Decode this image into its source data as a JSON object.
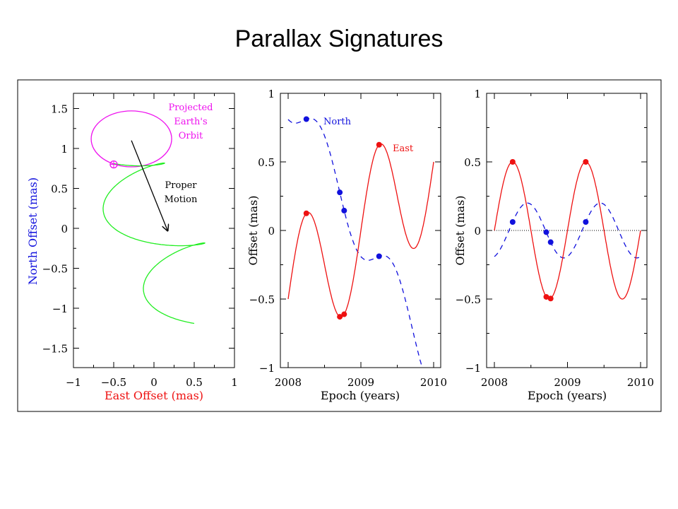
{
  "title": "Parallax Signatures",
  "colors": {
    "east": "#ee1111",
    "north": "#1111dd",
    "track": "#22ee22",
    "orbit": "#ee11ee",
    "arrow": "#000000"
  },
  "chart_data": [
    {
      "type": "line",
      "panel": "sky-track",
      "xlabel": "East Offset (mas)",
      "ylabel": "North Offset (mas)",
      "xlim": [
        -1,
        1
      ],
      "ylim": [
        -1.74,
        1.72
      ],
      "xticks": [
        "−1",
        "−0.5",
        "0",
        "0.5",
        "1"
      ],
      "xtick_values": [
        -1,
        -0.5,
        0,
        0.5,
        1
      ],
      "yticks": [
        "−1.5",
        "−1",
        "−0.5",
        "0",
        "0.5",
        "1",
        "1.5"
      ],
      "ytick_values": [
        -1.5,
        -1,
        -0.5,
        0,
        0.5,
        1,
        1.5
      ],
      "orbit_ellipse": {
        "center": [
          -0.28,
          1.12
        ],
        "semi_axes": [
          0.5,
          0.35
        ]
      },
      "earth_symbol_at": [
        -0.5,
        0.8
      ],
      "proper_motion_arrow": {
        "from": [
          -0.28,
          1.1
        ],
        "to": [
          0.17,
          -0.03
        ]
      },
      "annotations": {
        "orbit": [
          "Projected",
          "Earth's",
          "Orbit"
        ],
        "motion": [
          "Proper",
          "Motion"
        ]
      },
      "track": {
        "epoch_range": [
          2008,
          2010
        ]
      }
    },
    {
      "type": "line",
      "panel": "offset-vs-epoch",
      "xlabel": "Epoch (years)",
      "ylabel": "Offset (mas)",
      "xlim": [
        2008,
        2010
      ],
      "ylim": [
        -1,
        1
      ],
      "xticks": [
        "2008",
        "2009",
        "2010"
      ],
      "xtick_values": [
        2008,
        2009,
        2010
      ],
      "yticks": [
        "−1",
        "−0.5",
        "0",
        "0.5",
        "1"
      ],
      "ytick_values": [
        -1,
        -0.5,
        0,
        0.5,
        1
      ],
      "series": [
        {
          "name": "North",
          "style": "dashed",
          "model": {
            "amplitude": 0.2,
            "phase_epoch": 2007.95,
            "kind": "neg-cos",
            "slope": -1,
            "ref_epoch": 2009
          },
          "points_epochs": [
            2008.25,
            2008.71,
            2008.77,
            2009.25
          ]
        },
        {
          "name": "East",
          "style": "solid",
          "model": {
            "amplitude": 0.5,
            "phase_epoch": 2008,
            "kind": "sin",
            "slope": 0.5,
            "ref_epoch": 2009
          },
          "points_epochs": [
            2008.25,
            2008.71,
            2008.77,
            2009.25
          ]
        }
      ]
    },
    {
      "type": "line",
      "panel": "parallax-only",
      "xlabel": "Epoch (years)",
      "ylabel": "Offset (mas)",
      "xlim": [
        2008,
        2010
      ],
      "ylim": [
        -1,
        1
      ],
      "xticks": [
        "2008",
        "2009",
        "2010"
      ],
      "xtick_values": [
        2008,
        2009,
        2010
      ],
      "yticks": [
        "−1",
        "−0.5",
        "0",
        "0.5",
        "1"
      ],
      "ytick_values": [
        -1,
        -0.5,
        0,
        0.5,
        1
      ],
      "zero_line": true,
      "series": [
        {
          "name": "North",
          "style": "dashed",
          "model": {
            "amplitude": 0.2,
            "phase_epoch": 2007.95,
            "kind": "neg-cos",
            "slope": 0,
            "ref_epoch": 2009
          },
          "points_epochs": [
            2008.25,
            2008.71,
            2008.77,
            2009.25
          ]
        },
        {
          "name": "East",
          "style": "solid",
          "model": {
            "amplitude": 0.5,
            "phase_epoch": 2008,
            "kind": "sin",
            "slope": 0,
            "ref_epoch": 2009
          },
          "points_epochs": [
            2008.25,
            2008.71,
            2008.77,
            2009.25
          ]
        }
      ]
    }
  ]
}
